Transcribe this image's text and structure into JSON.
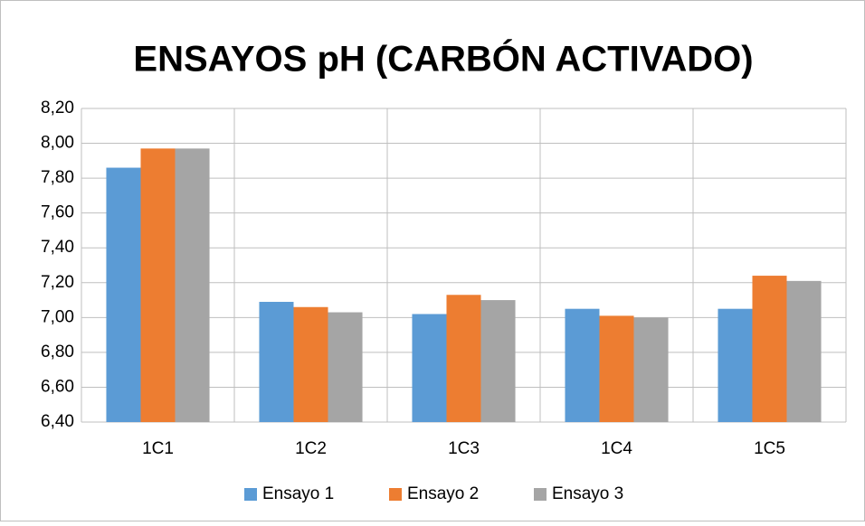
{
  "chart_data": {
    "type": "bar",
    "title": "ENSAYOS pH (CARBÓN ACTIVADO)",
    "categories": [
      "1C1",
      "1C2",
      "1C3",
      "1C4",
      "1C5"
    ],
    "series": [
      {
        "name": "Ensayo 1",
        "color": "#5b9bd5",
        "values": [
          7.86,
          7.09,
          7.02,
          7.05,
          7.05
        ]
      },
      {
        "name": "Ensayo 2",
        "color": "#ed7d31",
        "values": [
          7.97,
          7.06,
          7.13,
          7.01,
          7.24
        ]
      },
      {
        "name": "Ensayo 3",
        "color": "#a5a5a5",
        "values": [
          7.97,
          7.03,
          7.1,
          7.0,
          7.21
        ]
      }
    ],
    "ylim": [
      6.4,
      8.2
    ],
    "yticks": [
      {
        "value": 6.4,
        "label": "6,40"
      },
      {
        "value": 6.6,
        "label": "6,60"
      },
      {
        "value": 6.8,
        "label": "6,80"
      },
      {
        "value": 7.0,
        "label": "7,00"
      },
      {
        "value": 7.2,
        "label": "7,20"
      },
      {
        "value": 7.4,
        "label": "7,40"
      },
      {
        "value": 7.6,
        "label": "7,60"
      },
      {
        "value": 7.8,
        "label": "7,80"
      },
      {
        "value": 8.0,
        "label": "8,00"
      },
      {
        "value": 8.2,
        "label": "8,20"
      }
    ],
    "grid": true,
    "legend": "bottom"
  }
}
